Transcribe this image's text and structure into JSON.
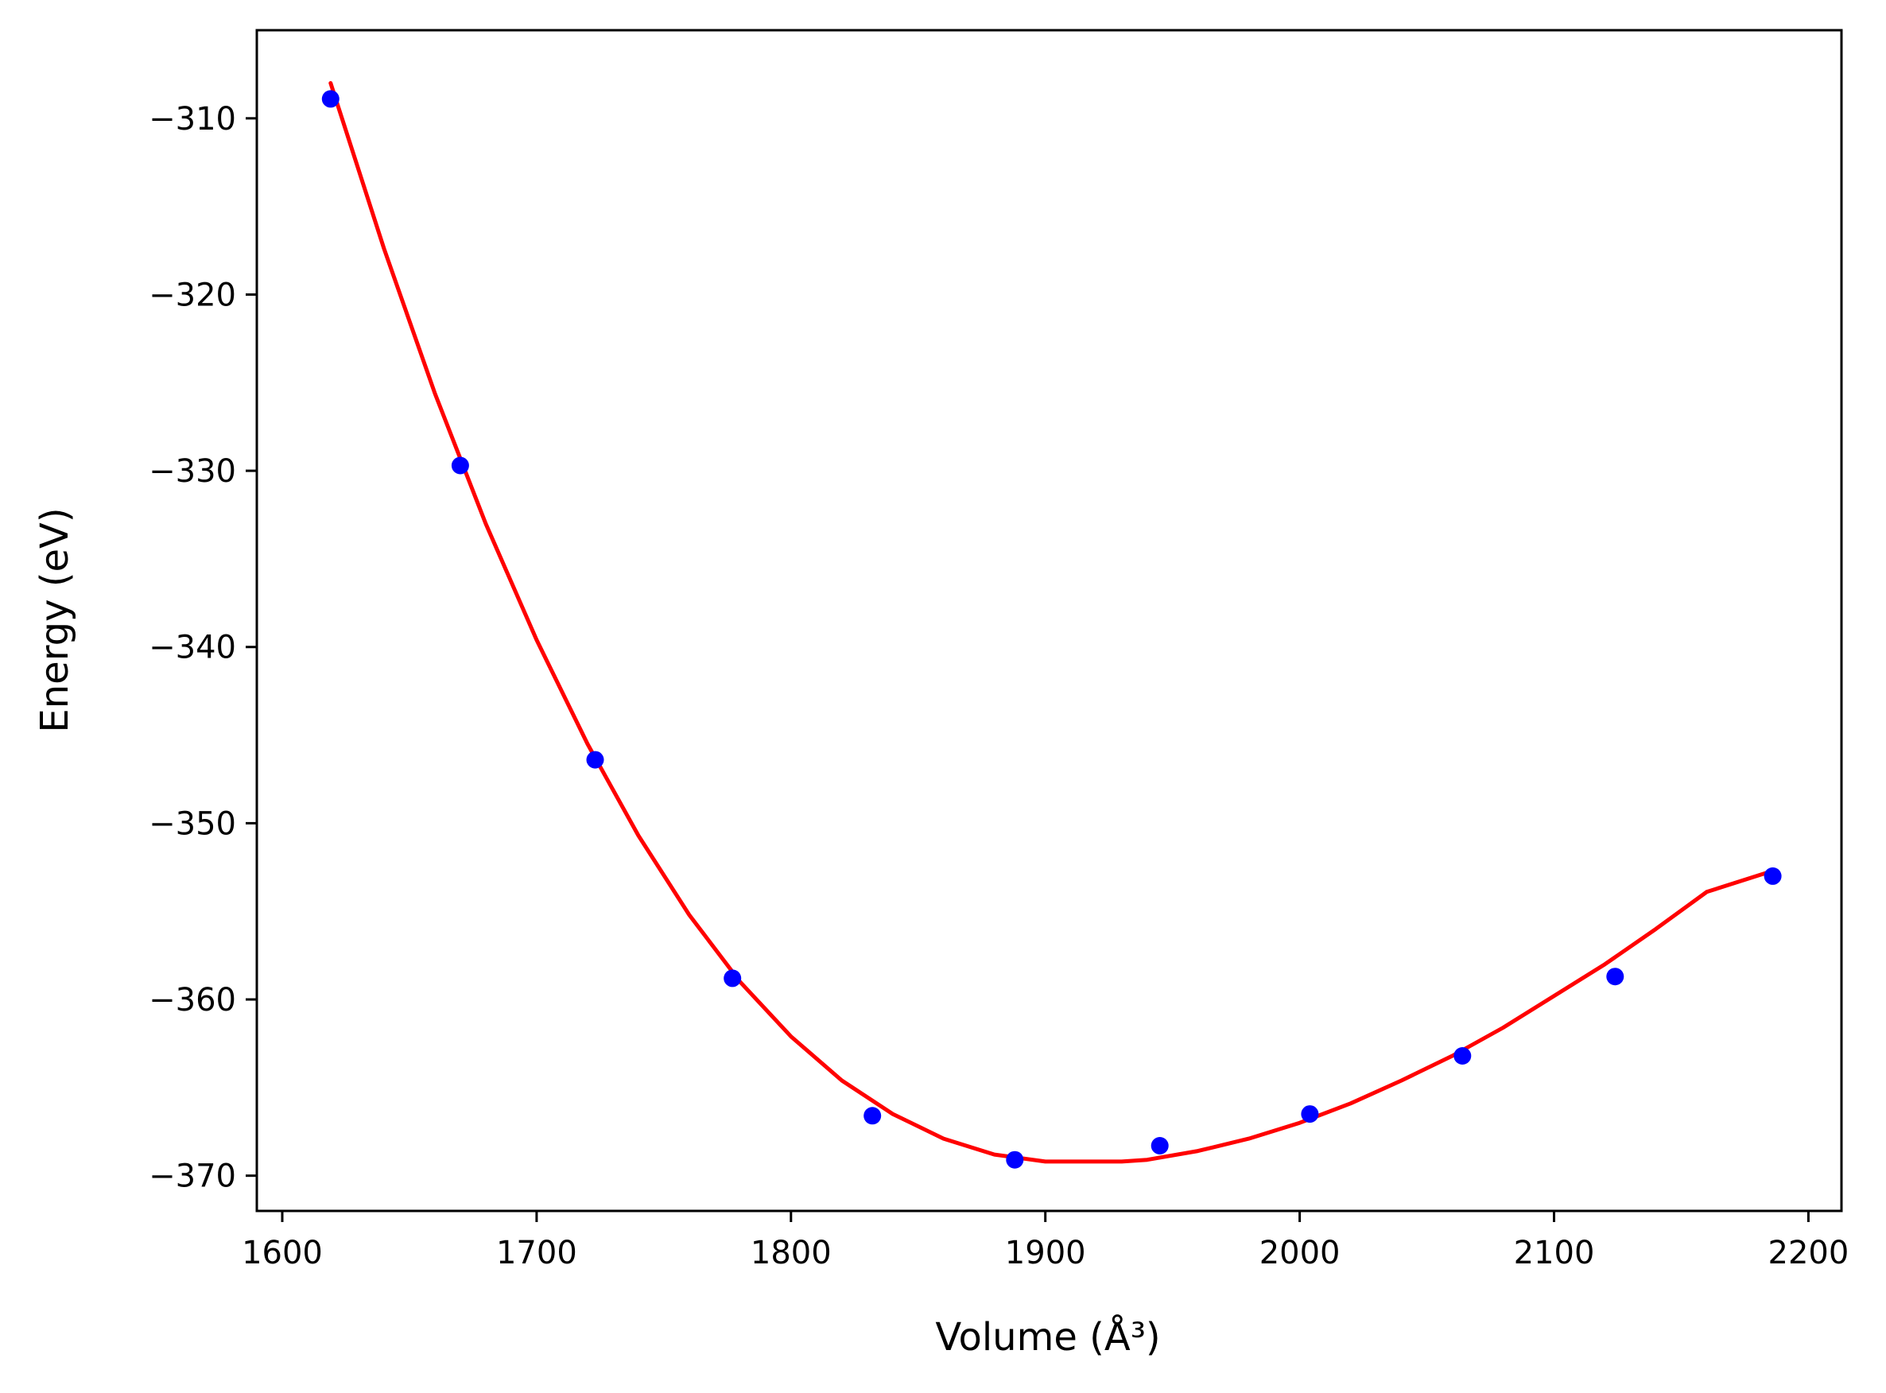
{
  "chart_data": {
    "type": "scatter",
    "title": "",
    "xlabel": "Volume (Å³)",
    "ylabel": "Energy (eV)",
    "xlim": [
      1590,
      2213
    ],
    "ylim": [
      -372.0,
      -305.0
    ],
    "xticks": [
      1600,
      1700,
      1800,
      1900,
      2000,
      2100,
      2200
    ],
    "xtick_labels": [
      "1600",
      "1700",
      "1800",
      "1900",
      "2000",
      "2100",
      "2200"
    ],
    "yticks": [
      -310,
      -320,
      -330,
      -340,
      -350,
      -360,
      -370
    ],
    "ytick_labels": [
      "−310",
      "−320",
      "−330",
      "−340",
      "−350",
      "−360",
      "−370"
    ],
    "grid": false,
    "legend": "none",
    "series": [
      {
        "kind": "points",
        "color": "#0000ff",
        "x": [
          1619,
          1670,
          1723,
          1777,
          1832,
          1888,
          1945,
          2004,
          2064,
          2124,
          2186
        ],
        "y": [
          -308.9,
          -329.7,
          -346.4,
          -358.8,
          -366.6,
          -369.1,
          -368.3,
          -366.5,
          -363.2,
          -358.7,
          -353.0
        ]
      },
      {
        "kind": "fit-line",
        "color": "#ff0000",
        "x": [
          1619,
          1640,
          1660,
          1680,
          1700,
          1720,
          1740,
          1760,
          1780,
          1800,
          1820,
          1840,
          1860,
          1880,
          1900,
          1920,
          1930,
          1940,
          1960,
          1980,
          2000,
          2020,
          2040,
          2060,
          2080,
          2100,
          2120,
          2140,
          2160,
          2186
        ],
        "y": [
          -308.0,
          -317.4,
          -325.6,
          -333.0,
          -339.6,
          -345.5,
          -350.7,
          -355.2,
          -359.0,
          -362.1,
          -364.6,
          -366.5,
          -367.9,
          -368.8,
          -369.2,
          -369.2,
          -369.2,
          -369.1,
          -368.6,
          -367.9,
          -367.0,
          -365.9,
          -364.6,
          -363.2,
          -361.6,
          -359.8,
          -358.0,
          -356.0,
          -353.9,
          -352.7
        ]
      }
    ]
  }
}
